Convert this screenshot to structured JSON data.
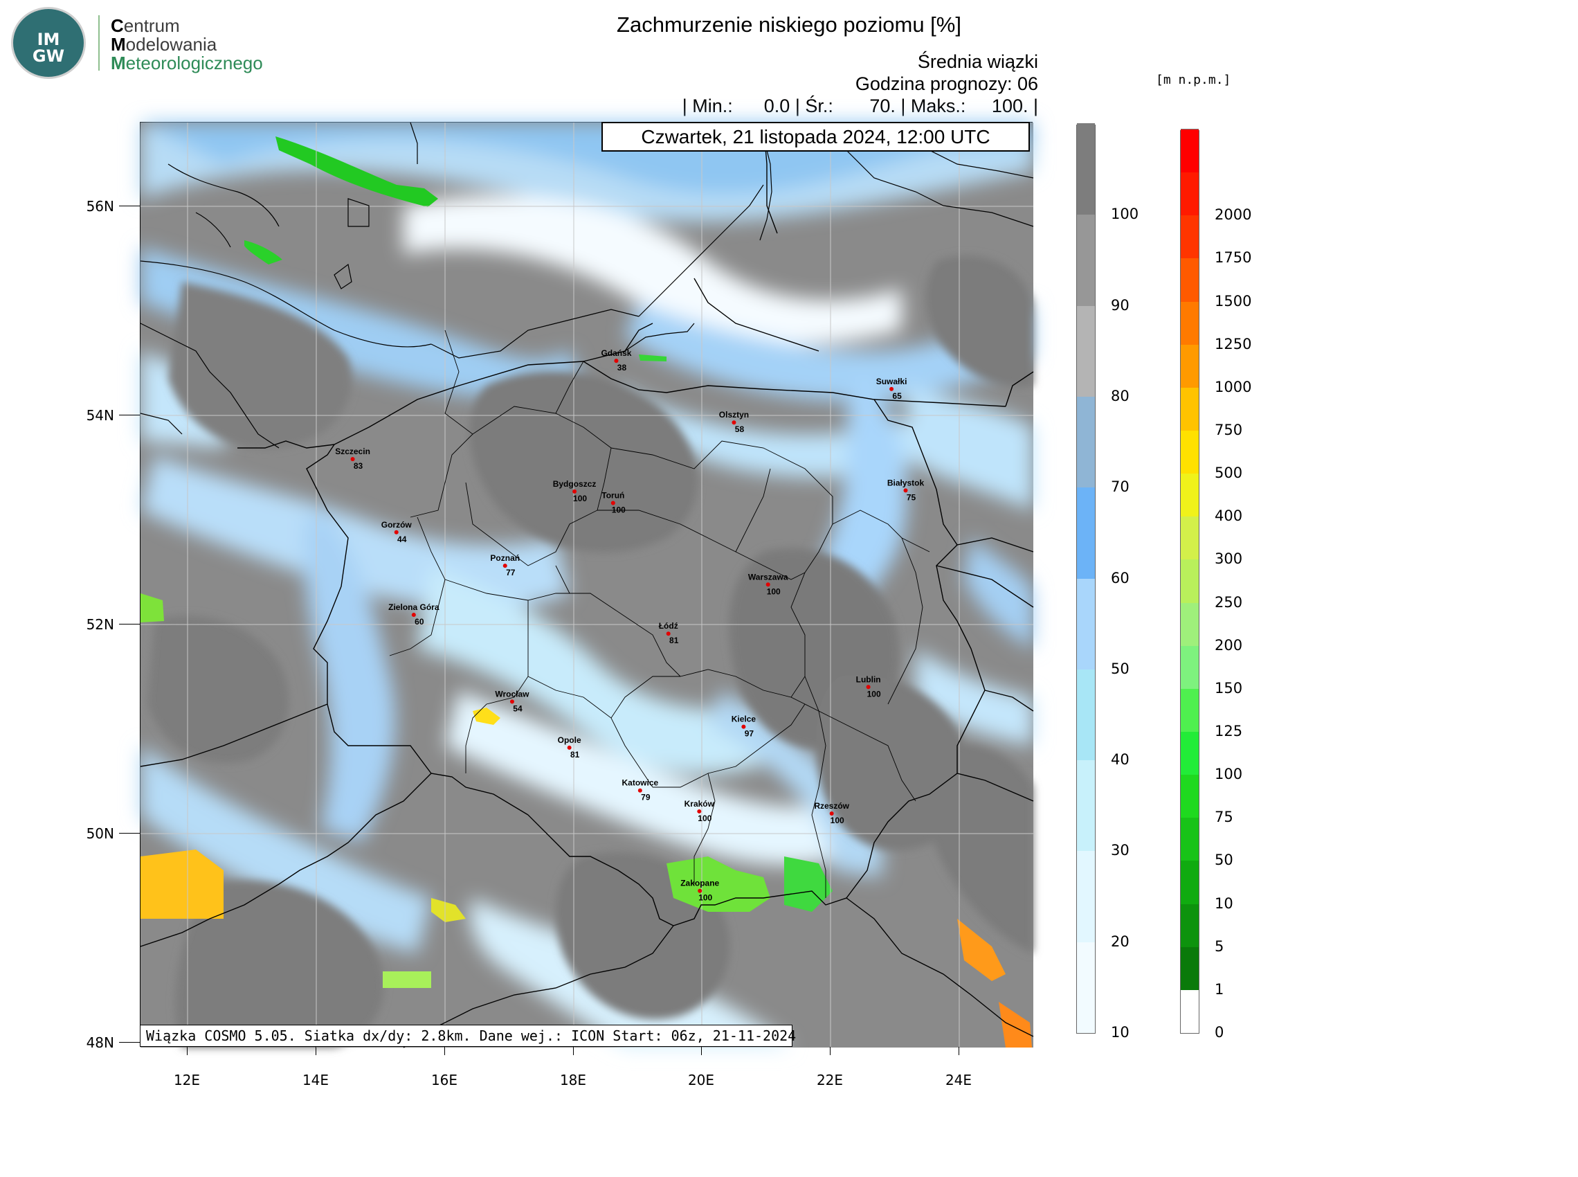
{
  "logo": {
    "badge": "IM\nGW",
    "line1_initial": "C",
    "line1_rest": "entrum",
    "line2_initial": "M",
    "line2_rest": "odelowania",
    "line3_initial": "M",
    "line3_rest": "eteorologicznego"
  },
  "title": "Zachmurzenie niskiego poziomu [%]",
  "subtitle": "Średnia wiązki",
  "forecast_hour": "Godzina prognozy: 06",
  "stats": "| Min.:      0.0 | Śr.:       70. | Maks.:     100. |",
  "date": "Czwartek, 21 listopada 2024, 12:00 UTC",
  "info": "Wiązka COSMO 5.05. Siatka dx/dy: 2.8km. Dane wej.: ICON Start: 06z, 21-11-2024",
  "unit_label": "[m n.p.m.]",
  "axes": {
    "lat_labels": [
      "56N",
      "54N",
      "52N",
      "50N",
      "48N"
    ],
    "lon_labels": [
      "12E",
      "14E",
      "16E",
      "18E",
      "20E",
      "22E",
      "24E"
    ],
    "lat_range": [
      48,
      56.8
    ],
    "lon_range": [
      11.25,
      25.2
    ],
    "grid": true
  },
  "cloud_colorbar": {
    "labels": [
      "10",
      "20",
      "30",
      "40",
      "50",
      "60",
      "70",
      "80",
      "90",
      "100"
    ],
    "colors": [
      "#f2fbff",
      "#e2f7ff",
      "#c8f1fb",
      "#a8e6f6",
      "#a9d6fb",
      "#6cb3f7",
      "#8fb5d5",
      "#b4b4b4",
      "#979797",
      "#7d7d7d"
    ]
  },
  "terrain_colorbar": {
    "labels": [
      "0",
      "1",
      "5",
      "10",
      "50",
      "75",
      "100",
      "125",
      "150",
      "200",
      "250",
      "300",
      "400",
      "500",
      "750",
      "1000",
      "1250",
      "1500",
      "1750",
      "2000"
    ],
    "colors": [
      "#ffffff",
      "#0a7a0a",
      "#0d930d",
      "#10ab10",
      "#18c318",
      "#1fd91f",
      "#22ec38",
      "#4ff04f",
      "#7ef27e",
      "#9ff07b",
      "#b9f05b",
      "#d3f04a",
      "#f0f21a",
      "#ffe100",
      "#ffc300",
      "#ff9a00",
      "#ff7a00",
      "#ff5a00",
      "#ff3500",
      "#ff1a00",
      "#ff0000"
    ]
  },
  "cities": [
    {
      "name": "Gdańsk",
      "value": "38",
      "lon": 18.65,
      "lat": 54.37
    },
    {
      "name": "Suwałki",
      "value": "65",
      "lon": 22.93,
      "lat": 54.1
    },
    {
      "name": "Olsztyn",
      "value": "58",
      "lon": 20.48,
      "lat": 53.78
    },
    {
      "name": "Szczecin",
      "value": "83",
      "lon": 14.55,
      "lat": 53.43
    },
    {
      "name": "Białystok",
      "value": "75",
      "lon": 23.15,
      "lat": 53.13
    },
    {
      "name": "Bydgoszcz",
      "value": "100",
      "lon": 18.0,
      "lat": 53.12
    },
    {
      "name": "Toruń",
      "value": "100",
      "lon": 18.6,
      "lat": 53.01
    },
    {
      "name": "Gorzów",
      "value": "44",
      "lon": 15.23,
      "lat": 52.73
    },
    {
      "name": "Poznań",
      "value": "77",
      "lon": 16.92,
      "lat": 52.41
    },
    {
      "name": "Warszawa",
      "value": "100",
      "lon": 21.01,
      "lat": 52.23
    },
    {
      "name": "Zielona Góra",
      "value": "60",
      "lon": 15.5,
      "lat": 51.94
    },
    {
      "name": "Łódź",
      "value": "81",
      "lon": 19.46,
      "lat": 51.76
    },
    {
      "name": "Lublin",
      "value": "100",
      "lon": 22.57,
      "lat": 51.25
    },
    {
      "name": "Wrocław",
      "value": "54",
      "lon": 17.03,
      "lat": 51.11
    },
    {
      "name": "Kielce",
      "value": "97",
      "lon": 20.63,
      "lat": 50.87
    },
    {
      "name": "Opole",
      "value": "81",
      "lon": 17.92,
      "lat": 50.67
    },
    {
      "name": "Katowice",
      "value": "79",
      "lon": 19.02,
      "lat": 50.26
    },
    {
      "name": "Kraków",
      "value": "100",
      "lon": 19.94,
      "lat": 50.06
    },
    {
      "name": "Rzeszów",
      "value": "100",
      "lon": 22.0,
      "lat": 50.04
    },
    {
      "name": "Zakopane",
      "value": "100",
      "lon": 19.95,
      "lat": 49.3
    }
  ]
}
